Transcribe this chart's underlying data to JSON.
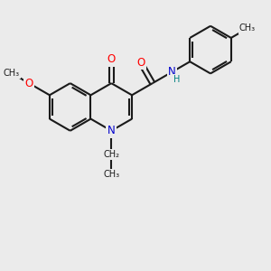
{
  "bg_color": "#ebebeb",
  "bond_color": "#1a1a1a",
  "bond_width": 1.5,
  "atom_colors": {
    "O": "#ff0000",
    "N": "#0000cc",
    "H": "#008080",
    "C": "#1a1a1a"
  },
  "font_size_atom": 8.5,
  "font_size_small": 7.0,
  "xlim": [
    0,
    10
  ],
  "ylim": [
    0,
    10
  ]
}
